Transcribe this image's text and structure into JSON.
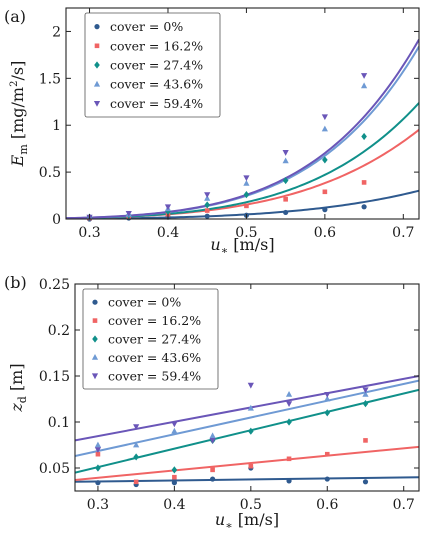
{
  "chart_data": [
    {
      "panel_label": "(a)",
      "type": "scatter",
      "ylabel_main": "E",
      "ylabel_sub": "m",
      "ylabel_unit_pre": " [mg/m",
      "ylabel_unit_sup": "2",
      "ylabel_unit_post": "/s]",
      "xlabel_main": "u",
      "xlabel_sub": "∗",
      "xlabel_unit": " [m/s]",
      "xlim": [
        0.27,
        0.72
      ],
      "ylim": [
        0,
        2.25
      ],
      "xticks": [
        0.3,
        0.4,
        0.5,
        0.6,
        0.7
      ],
      "xtick_labels": [
        "0.3",
        "0.4",
        "0.5",
        "0.6",
        "0.7"
      ],
      "yticks": [
        0,
        0.5,
        1,
        1.5,
        2
      ],
      "ytick_labels": [
        "0",
        "0.5",
        "1",
        "1.5",
        "2"
      ],
      "legend_position": "top-left",
      "fit": "power",
      "series": [
        {
          "name": "cover = 0%",
          "color": "#2f5a8f",
          "marker": "circle",
          "x": [
            0.3,
            0.35,
            0.4,
            0.45,
            0.5,
            0.55,
            0.6,
            0.65
          ],
          "y": [
            0.0,
            0.01,
            0.02,
            0.03,
            0.04,
            0.07,
            0.1,
            0.13
          ],
          "fit_params": [
            1.56,
            5.0
          ]
        },
        {
          "name": "cover = 16.2%",
          "color": "#f06464",
          "marker": "square",
          "x": [
            0.3,
            0.35,
            0.4,
            0.45,
            0.5,
            0.55,
            0.6,
            0.65
          ],
          "y": [
            0.01,
            0.02,
            0.05,
            0.09,
            0.14,
            0.21,
            0.29,
            0.39
          ],
          "fit_params": [
            4.92,
            5.0
          ]
        },
        {
          "name": "cover = 27.4%",
          "color": "#10908a",
          "marker": "diamond",
          "x": [
            0.3,
            0.35,
            0.4,
            0.45,
            0.5,
            0.55,
            0.6,
            0.65
          ],
          "y": [
            0.02,
            0.04,
            0.08,
            0.15,
            0.26,
            0.41,
            0.63,
            0.88
          ],
          "fit_params": [
            7.06,
            5.3
          ]
        },
        {
          "name": "cover = 43.6%",
          "color": "#6f9ad4",
          "marker": "triangle-up",
          "x": [
            0.3,
            0.35,
            0.4,
            0.45,
            0.5,
            0.55,
            0.6,
            0.65
          ],
          "y": [
            0.02,
            0.05,
            0.11,
            0.22,
            0.38,
            0.62,
            0.96,
            1.42
          ],
          "fit_params": [
            11.2,
            5.5
          ]
        },
        {
          "name": "cover = 59.4%",
          "color": "#6a56b8",
          "marker": "triangle-down",
          "x": [
            0.3,
            0.35,
            0.4,
            0.45,
            0.5,
            0.55,
            0.6,
            0.65
          ],
          "y": [
            0.02,
            0.06,
            0.13,
            0.26,
            0.44,
            0.71,
            1.09,
            1.53
          ],
          "fit_params": [
            11.66,
            5.5
          ]
        }
      ]
    },
    {
      "panel_label": "(b)",
      "type": "scatter",
      "ylabel_main": "z",
      "ylabel_sub": "d",
      "ylabel_unit_pre": " [m]",
      "ylabel_unit_sup": "",
      "ylabel_unit_post": "",
      "xlabel_main": "u",
      "xlabel_sub": "∗",
      "xlabel_unit": " [m/s]",
      "xlim": [
        0.27,
        0.72
      ],
      "ylim": [
        0.025,
        0.25
      ],
      "xticks": [
        0.3,
        0.4,
        0.5,
        0.6,
        0.7
      ],
      "xtick_labels": [
        "0.3",
        "0.4",
        "0.5",
        "0.6",
        "0.7"
      ],
      "yticks": [
        0.05,
        0.1,
        0.15,
        0.2,
        0.25
      ],
      "ytick_labels": [
        "0.05",
        "0.1",
        "0.15",
        "0.2",
        "0.25"
      ],
      "legend_position": "top-left",
      "fit": "linear",
      "series": [
        {
          "name": "cover = 0%",
          "color": "#2f5a8f",
          "marker": "circle",
          "x": [
            0.3,
            0.35,
            0.4,
            0.45,
            0.5,
            0.55,
            0.6,
            0.65
          ],
          "y": [
            0.034,
            0.032,
            0.034,
            0.038,
            0.05,
            0.036,
            0.038,
            0.035
          ],
          "fit_line": [
            [
              0.27,
              0.035
            ],
            [
              0.72,
              0.04
            ]
          ]
        },
        {
          "name": "cover = 16.2%",
          "color": "#f06464",
          "marker": "square",
          "x": [
            0.3,
            0.35,
            0.4,
            0.45,
            0.5,
            0.55,
            0.6,
            0.65
          ],
          "y": [
            0.065,
            0.035,
            0.04,
            0.048,
            0.052,
            0.06,
            0.065,
            0.08
          ],
          "fit_line": [
            [
              0.27,
              0.037
            ],
            [
              0.72,
              0.073
            ]
          ]
        },
        {
          "name": "cover = 27.4%",
          "color": "#10908a",
          "marker": "diamond",
          "x": [
            0.3,
            0.35,
            0.4,
            0.45,
            0.5,
            0.55,
            0.6,
            0.65
          ],
          "y": [
            0.05,
            0.062,
            0.048,
            0.08,
            0.09,
            0.1,
            0.11,
            0.12
          ],
          "fit_line": [
            [
              0.27,
              0.045
            ],
            [
              0.72,
              0.135
            ]
          ]
        },
        {
          "name": "cover = 43.6%",
          "color": "#6f9ad4",
          "marker": "triangle-up",
          "x": [
            0.3,
            0.35,
            0.4,
            0.45,
            0.5,
            0.55,
            0.6,
            0.65
          ],
          "y": [
            0.075,
            0.075,
            0.09,
            0.085,
            0.115,
            0.13,
            0.125,
            0.13
          ],
          "fit_line": [
            [
              0.27,
              0.063
            ],
            [
              0.72,
              0.145
            ]
          ]
        },
        {
          "name": "cover = 59.4%",
          "color": "#6a56b8",
          "marker": "triangle-down",
          "x": [
            0.3,
            0.35,
            0.4,
            0.45,
            0.5,
            0.55,
            0.6,
            0.65
          ],
          "y": [
            0.07,
            0.095,
            0.098,
            0.08,
            0.14,
            0.12,
            0.13,
            0.135
          ],
          "fit_line": [
            [
              0.27,
              0.08
            ],
            [
              0.72,
              0.15
            ]
          ]
        }
      ]
    }
  ]
}
